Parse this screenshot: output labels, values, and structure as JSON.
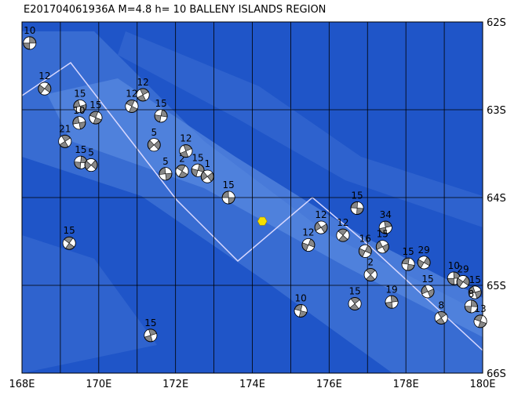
{
  "chart_data": {
    "type": "map",
    "title": "E201704061936A  M=4.8  h= 10  BALLENY ISLANDS REGION",
    "xlim": [
      168,
      180
    ],
    "ylim": [
      62,
      66
    ],
    "xticks": [
      {
        "value": 168,
        "label": "168E"
      },
      {
        "value": 170,
        "label": "170E"
      },
      {
        "value": 172,
        "label": "172E"
      },
      {
        "value": 174,
        "label": "174E"
      },
      {
        "value": 176,
        "label": "176E"
      },
      {
        "value": 178,
        "label": "178E"
      },
      {
        "value": 180,
        "label": "180E"
      }
    ],
    "yticks": [
      {
        "value": 62,
        "label": "62S"
      },
      {
        "value": 63,
        "label": "63S"
      },
      {
        "value": 64,
        "label": "64S"
      },
      {
        "value": 65,
        "label": "65S"
      },
      {
        "value": 66,
        "label": "66S"
      }
    ],
    "epicenter": {
      "lon": 174.26,
      "lat": 64.27,
      "color": "#f5e000"
    },
    "events": {
      "lon": [
        168.2,
        168.59,
        169.51,
        169.92,
        169.12,
        169.53,
        169.8,
        169.49,
        170.86,
        171.15,
        171.62,
        171.44,
        171.74,
        172.17,
        172.27,
        172.58,
        172.83,
        173.38,
        169.23,
        171.35,
        175.46,
        175.79,
        176.73,
        176.36,
        177.47,
        176.94,
        177.39,
        178.06,
        177.08,
        177.63,
        178.47,
        178.57,
        175.26,
        176.67,
        179.25,
        179.49,
        179.8,
        179.94,
        178.92,
        179.7
      ],
      "lat": [
        62.24,
        62.76,
        62.96,
        63.09,
        63.36,
        63.6,
        63.63,
        63.15,
        62.96,
        62.83,
        63.07,
        63.4,
        63.73,
        63.7,
        63.47,
        63.69,
        63.76,
        64.0,
        64.52,
        65.57,
        64.54,
        64.34,
        64.12,
        64.43,
        64.34,
        64.61,
        64.56,
        64.76,
        64.88,
        65.19,
        64.74,
        65.07,
        65.29,
        65.21,
        64.92,
        64.96,
        65.08,
        65.41,
        65.37,
        65.24
      ],
      "depth": [
        10,
        12,
        15,
        15,
        21,
        15,
        5,
        10,
        12,
        12,
        15,
        5,
        5,
        2,
        12,
        15,
        1,
        15,
        15,
        15,
        12,
        12,
        15,
        12,
        34,
        16,
        15,
        15,
        2,
        19,
        29,
        15,
        10,
        15,
        10,
        29,
        15,
        13,
        8,
        8
      ]
    }
  }
}
